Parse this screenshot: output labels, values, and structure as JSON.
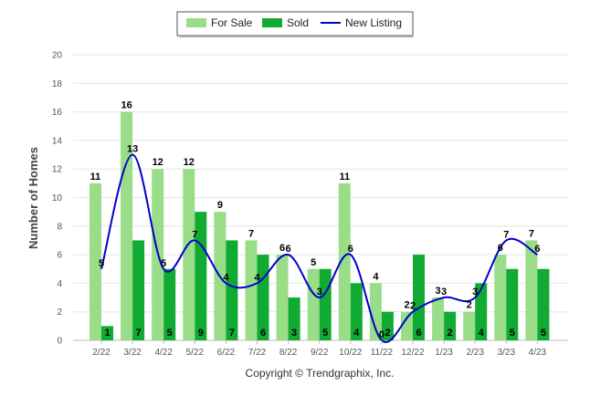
{
  "chart_data": {
    "type": "bar",
    "title": "",
    "xlabel": "",
    "ylabel": "Number of Homes",
    "ylim": [
      0,
      20
    ],
    "yticks": [
      0,
      2,
      4,
      6,
      8,
      10,
      12,
      14,
      16,
      18,
      20
    ],
    "grid": true,
    "legend_position": "top-center",
    "categories": [
      "2/22",
      "3/22",
      "4/22",
      "5/22",
      "6/22",
      "7/22",
      "8/22",
      "9/22",
      "10/22",
      "11/22",
      "12/22",
      "1/23",
      "2/23",
      "3/23",
      "4/23"
    ],
    "series": [
      {
        "name": "For Sale",
        "type": "bar",
        "color": "#99dd88",
        "values": [
          11,
          16,
          12,
          12,
          9,
          7,
          6,
          5,
          11,
          4,
          2,
          3,
          2,
          6,
          7
        ]
      },
      {
        "name": "Sold",
        "type": "bar",
        "color": "#11aa33",
        "values": [
          1,
          7,
          5,
          9,
          7,
          6,
          3,
          5,
          4,
          2,
          6,
          2,
          4,
          5,
          5
        ]
      },
      {
        "name": "New Listing",
        "type": "line",
        "color": "#0000cc",
        "values": [
          5,
          13,
          5,
          7,
          4,
          4,
          6,
          3,
          6,
          0,
          2,
          3,
          3,
          7,
          6
        ]
      }
    ]
  },
  "footer": {
    "copyright": "Copyright © Trendgraphix, Inc."
  }
}
